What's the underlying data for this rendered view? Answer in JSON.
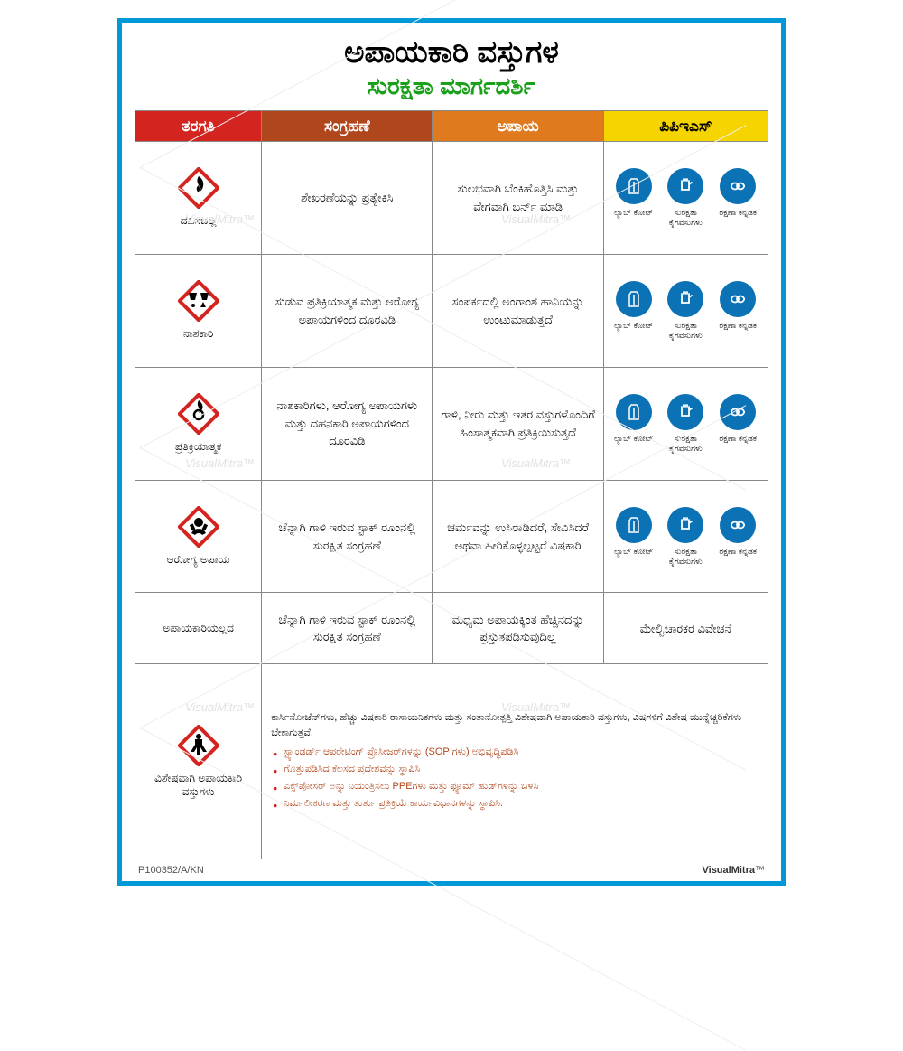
{
  "colors": {
    "border": "#0099d8",
    "title2": "#1aa01a",
    "header_bg": [
      "#d32420",
      "#b0461b",
      "#e07a1f",
      "#f6d400"
    ],
    "header_fg": [
      "#ffffff",
      "#ffffff",
      "#ffffff",
      "#000000"
    ],
    "hazard_stroke": "#d32420",
    "hazard_fill_black": "#000000",
    "ppe_bg": "#0b72b5",
    "ppe_fg": "#ffffff",
    "bullet": "#d32420",
    "note_text": "#b0461b",
    "watermark": "#e2e2e2"
  },
  "title_line1": "ಅಪಾಯಕಾರಿ ವಸ್ತುಗಳ",
  "title_line2": "ಸುರಕ್ಷತಾ ಮಾರ್ಗದರ್ಶಿ",
  "headers": [
    "ತರಗತಿ",
    "ಸಂಗ್ರಹಣೆ",
    "ಅಪಾಯ",
    "ಪಿಪಿಇಎಸ್"
  ],
  "col_widths": [
    "20%",
    "27%",
    "27%",
    "26%"
  ],
  "ppe_items": [
    {
      "icon": "coat",
      "label": "ಲ್ಯಾಬ್ ಕೋಟ್"
    },
    {
      "icon": "gloves",
      "label": "ಸುರಕ್ಷತಾ ಕೈಗವಸುಗಳು"
    },
    {
      "icon": "goggles",
      "label": "ರಕ್ಷಣಾ ಕನ್ನಡಕ"
    }
  ],
  "rows": [
    {
      "hazard_icon": "flame",
      "category": "ದಹಿಸಬಲ್ಲ",
      "storage": "ಶೇಖರಣೆಯನ್ನು ಪ್ರತ್ಯೇಕಿಸಿ",
      "hazard": "ಸುಲಭವಾಗಿ ಬೆಂಕಿಹೊತ್ತಿಸಿ ಮತ್ತು ವೇಗವಾಗಿ ಬರ್ನ್ ಮಾಡಿ",
      "ppe": true
    },
    {
      "hazard_icon": "corrosive",
      "category": "ನಾಶಕಾರಿ",
      "storage": "ಸುಡುವ ಪ್ರತಿಕ್ರಿಯಾತ್ಮಕ ಮತ್ತು ಆರೋಗ್ಯ ಅಪಾಯಗಳಿಂದ ದೂರವಿಡಿ",
      "hazard": "ಸಂಪರ್ಕದಲ್ಲಿ ಅಂಗಾಂಶ ಹಾನಿಯನ್ನು ಉಂಟುಮಾಡುತ್ತದೆ",
      "ppe": true
    },
    {
      "hazard_icon": "oxidizer",
      "category": "ಪ್ರತಿಕ್ರಿಯಾತ್ಮಕ",
      "storage": "ನಾಶಕಾರಿಗಳು, ಆರೋಗ್ಯ ಅಪಾಯಗಳು ಮತ್ತು ದಹನಕಾರಿ ಅಪಾಯಗಳಿಂದ ದೂರವಿಡಿ",
      "hazard": "ಗಾಳಿ, ನೀರು ಮತ್ತು ಇತರ ವಸ್ತುಗಳೊಂದಿಗೆ ಹಿಂಸಾತ್ಮಕವಾಗಿ ಪ್ರತಿಕ್ರಿಯಿಸುತ್ತದೆ",
      "ppe": true
    },
    {
      "hazard_icon": "toxic",
      "category": "ಆರೋಗ್ಯ ಅಪಾಯ",
      "storage": "ಚೆನ್ನಾಗಿ ಗಾಳಿ ಇರುವ ಸ್ಟಾಕ್ ರೂಂನಲ್ಲಿ ಸುರಕ್ಷಿತ ಸಂಗ್ರಹಣೆ",
      "hazard": "ಚರ್ಮವನ್ನು ಉಸಿರಾಡಿದರೆ, ಸೇವಿಸಿದರೆ ಅಥವಾ ಹೀರಿಕೊಳ್ಳಲ್ಪಟ್ಟರೆ ವಿಷಕಾರಿ",
      "ppe": true
    },
    {
      "hazard_icon": "none",
      "category": "ಅಪಾಯಕಾರಿಯಲ್ಲದ",
      "storage": "ಚೆನ್ನಾಗಿ ಗಾಳಿ ಇರುವ ಸ್ಟಾಕ್ ರೂಂನಲ್ಲಿ ಸುರಕ್ಷಿತ ಸಂಗ್ರಹಣೆ",
      "hazard": "ಮಧ್ಯಮ ಅಪಾಯಕ್ಕಿಂತ ಹೆಚ್ಚಿನದನ್ನು ಪ್ರಸ್ತುತಪಡಿಸುವುದಿಲ್ಲ",
      "ppe_text": "ಮೇಲ್ವಿಚಾರಕರ ವಿವೇಚನೆ"
    }
  ],
  "last_row": {
    "hazard_icon": "health",
    "category": "ವಿಶೇಷವಾಗಿ ಅಪಾಯಕಾರಿ ವಸ್ತುಗಳು",
    "intro": "ಕಾರ್ಸಿನೋಜೆನ್‌ಗಳು, ಹೆಚ್ಚು ವಿಷಕಾರಿ ರಾಸಾಯನಿಕಗಳು ಮತ್ತು ಸಂತಾನೋತ್ಪತ್ತಿ ವಿಶೇಷವಾಗಿ ಅಪಾಯಕಾರಿ ವಸ್ತುಗಳು, ವಿಷಗಳಿಗೆ ವಿಶೇಷ ಮುನ್ನೆಚ್ಚರಿಕೆಗಳು ಬೇಕಾಗುತ್ತವೆ.",
    "bullets": [
      "ಸ್ಟ್ಯಾಂಡರ್ಡ್ ಆಪರೇಟಿಂಗ್ ಪ್ರೊಸೀಜರ್‌ಗಳನ್ನು (SOP ಗಳು) ಅಭಿವೃದ್ಧಿಪಡಿಸಿ",
      "ಗೊತ್ತುಪಡಿಸಿದ ಕೆಲಸದ ಪ್ರದೇಶವನ್ನು ಸ್ಥಾಪಿಸಿ",
      "ಎಕ್ಸ್‌ಪೋಸರ್ ಅನ್ನು ನಿಯಂತ್ರಿಸಲು PPEಗಳು ಮತ್ತು ಫ್ಯೂಮ್ ಹುಡ್‌ಗಳನ್ನು ಬಳಸಿ",
      "ನಿರ್ಮಲೀಕರಣ ಮತ್ತು ತುರ್ತು ಪ್ರತಿಕ್ರಿಯೆ ಕಾರ್ಯವಿಧಾನಗಳನ್ನು ಸ್ಥಾಪಿಸಿ."
    ]
  },
  "footer_code": "P100352/A/KN",
  "footer_brand": "VisualMitra",
  "watermark_text": "VisualMitra™"
}
